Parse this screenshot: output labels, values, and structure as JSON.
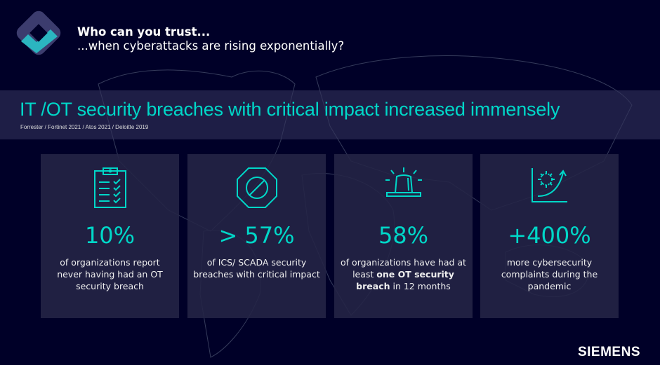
{
  "header": {
    "title_line1": "Who can you trust...",
    "title_line2": "...when cyberattacks are rising exponentially?"
  },
  "banner": {
    "headline": "IT /OT security breaches with critical impact increased immensely",
    "sources": "Forrester / Fortinet 2021 / Atos 2021 / Deloitte 2019"
  },
  "colors": {
    "background": "#000028",
    "accent": "#00d7c8",
    "card": "#242446"
  },
  "cards": [
    {
      "icon": "clipboard-checklist-icon",
      "value": "10%",
      "desc": "of organizations report never having had an OT security breach"
    },
    {
      "icon": "stop-sign-icon",
      "value": "> 57%",
      "desc": "of ICS/ SCADA security breaches with critical impact"
    },
    {
      "icon": "alarm-siren-icon",
      "value": "58%",
      "desc_pre": "of organizations have had at least ",
      "desc_bold": "one OT security breach",
      "desc_post": " in 12 months"
    },
    {
      "icon": "virus-growth-chart-icon",
      "value": "+400%",
      "desc": "more cybersecurity complaints during the pandemic"
    }
  ],
  "brand": "SIEMENS"
}
